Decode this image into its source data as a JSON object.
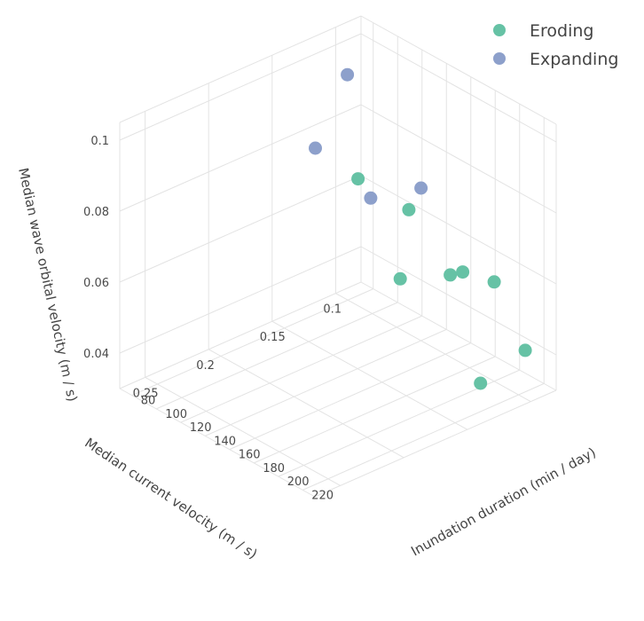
{
  "chart_data": {
    "type": "scatter3d",
    "title": "",
    "axes": {
      "x": {
        "label": "Inundation duration (min / day)",
        "ticks": [
          80,
          100,
          120,
          140,
          160,
          180,
          200,
          220
        ],
        "range": [
          70,
          230
        ]
      },
      "y": {
        "label": "Median current velocity (m / s)",
        "ticks": [
          0.1,
          0.15,
          0.2,
          0.25
        ],
        "range": [
          0.08,
          0.27
        ]
      },
      "z": {
        "label": "Median wave orbital velocity (m / s)",
        "ticks": [
          0.04,
          0.06,
          0.08,
          0.1
        ],
        "range": [
          0.03,
          0.105
        ]
      }
    },
    "grid": true,
    "legend": {
      "placement": "top-right"
    },
    "series": [
      {
        "name": "Eroding",
        "color": "#66c2a5",
        "points": [
          {
            "x": 215,
            "y": 0.09,
            "z": 0.04
          },
          {
            "x": 220,
            "y": 0.13,
            "z": 0.038
          },
          {
            "x": 200,
            "y": 0.1,
            "z": 0.058
          },
          {
            "x": 195,
            "y": 0.12,
            "z": 0.063
          },
          {
            "x": 190,
            "y": 0.125,
            "z": 0.062
          },
          {
            "x": 175,
            "y": 0.15,
            "z": 0.062
          },
          {
            "x": 130,
            "y": 0.14,
            "z": 0.08
          },
          {
            "x": 130,
            "y": 0.1,
            "z": 0.065
          }
        ]
      },
      {
        "name": "Expanding",
        "color": "#8da0cb",
        "points": [
          {
            "x": 90,
            "y": 0.11,
            "z": 0.097
          },
          {
            "x": 95,
            "y": 0.14,
            "z": 0.082
          },
          {
            "x": 140,
            "y": 0.1,
            "z": 0.073
          },
          {
            "x": 130,
            "y": 0.13,
            "z": 0.073
          }
        ]
      }
    ]
  }
}
